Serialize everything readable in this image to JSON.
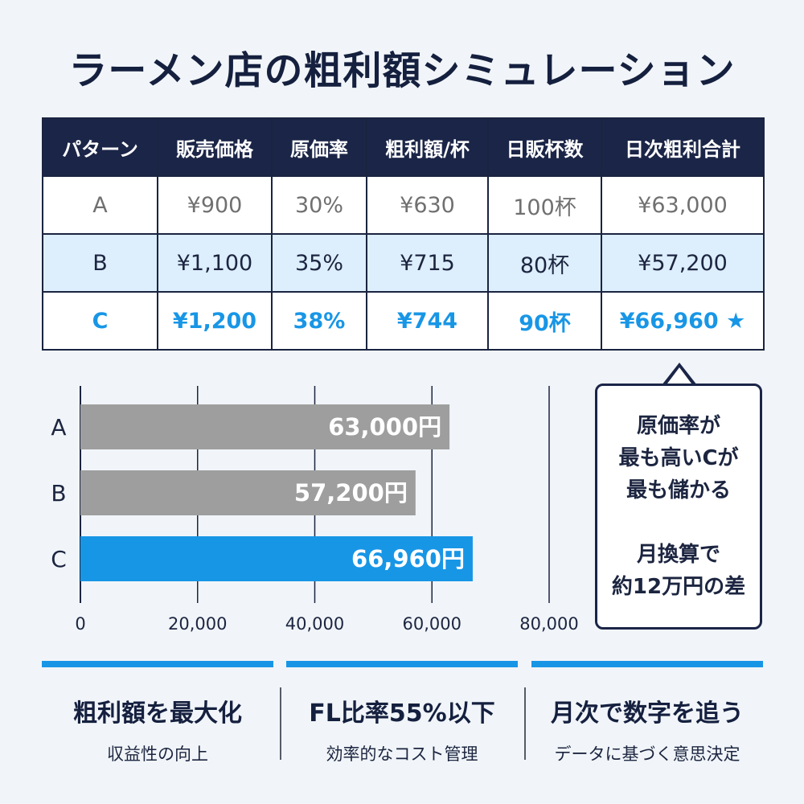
{
  "title": "ラーメン店の粗利額シミュレーション",
  "table": {
    "headers": [
      "パターン",
      "販売価格",
      "原価率",
      "粗利額/杯",
      "日販杯数",
      "日次粗利合計"
    ],
    "rows": [
      [
        "A",
        "¥900",
        "30%",
        "¥630",
        "100杯",
        "¥63,000"
      ],
      [
        "B",
        "¥1,100",
        "35%",
        "¥715",
        "80杯",
        "¥57,200"
      ],
      [
        "C",
        "¥1,200",
        "38%",
        "¥744",
        "90杯",
        "¥66,960 ★"
      ]
    ]
  },
  "chart_data": {
    "type": "bar",
    "orientation": "horizontal",
    "categories": [
      "A",
      "B",
      "C"
    ],
    "values": [
      63000,
      57200,
      66960
    ],
    "value_labels": [
      "63,000円",
      "57,200円",
      "66,960円"
    ],
    "highlight": "C",
    "xlim": [
      0,
      80000
    ],
    "xticks": [
      0,
      20000,
      40000,
      60000,
      80000
    ],
    "xtick_labels": [
      "0",
      "20,000",
      "40,000",
      "60,000",
      "80,000"
    ],
    "grid": true,
    "colors": {
      "default": "#9e9e9e",
      "highlight": "#1896e6"
    }
  },
  "callout": {
    "line1": "原価率が",
    "line2": "最も高いCが",
    "line3": "最も儲かる",
    "line4": "月換算で",
    "line5": "約12万円の差"
  },
  "features": [
    {
      "heading": "粗利額を最大化",
      "sub": "収益性の向上"
    },
    {
      "heading": "FL比率55%以下",
      "sub": "効率的なコスト管理"
    },
    {
      "heading": "月次で数字を追う",
      "sub": "データに基づく意思決定"
    }
  ],
  "colors": {
    "navy": "#1b2547",
    "accent": "#1896e6",
    "gray": "#9e9e9e"
  }
}
